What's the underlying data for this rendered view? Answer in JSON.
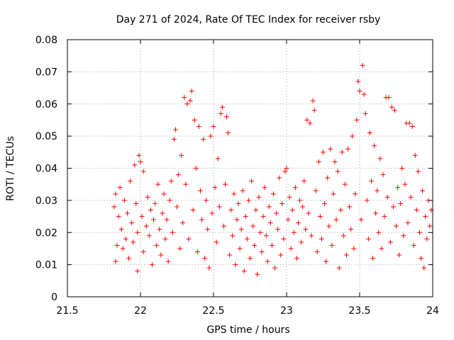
{
  "chart_data": {
    "type": "scatter",
    "title": "Day 271 of 2024, Rate Of TEC Index for receiver rsby",
    "xlabel": "GPS time / hours",
    "ylabel": "ROTI / TECUs",
    "xlim": [
      21.5,
      24
    ],
    "ylim": [
      0,
      0.08
    ],
    "xticks": [
      21.5,
      22,
      22.5,
      23,
      23.5,
      24
    ],
    "xtick_labels": [
      "21.5",
      "22",
      "22.5",
      "23",
      "23.5",
      "24"
    ],
    "yticks": [
      0,
      0.01,
      0.02,
      0.03,
      0.04,
      0.05,
      0.06,
      0.07,
      0.08
    ],
    "ytick_labels": [
      "0",
      "0.01",
      "0.02",
      "0.03",
      "0.04",
      "0.05",
      "0.06",
      "0.07",
      "0.08"
    ],
    "grid": true,
    "marker": "+",
    "color": "#ff0000",
    "series": [
      {
        "name": "ROTI",
        "points": [
          [
            21.82,
            0.028
          ],
          [
            21.83,
            0.032
          ],
          [
            21.83,
            0.011
          ],
          [
            21.84,
            0.016
          ],
          [
            21.85,
            0.025
          ],
          [
            21.86,
            0.034
          ],
          [
            21.87,
            0.021
          ],
          [
            21.88,
            0.015
          ],
          [
            21.89,
            0.03
          ],
          [
            21.9,
            0.018
          ],
          [
            21.91,
            0.026
          ],
          [
            21.92,
            0.012
          ],
          [
            21.93,
            0.036
          ],
          [
            21.94,
            0.023
          ],
          [
            21.95,
            0.017
          ],
          [
            21.96,
            0.041
          ],
          [
            21.97,
            0.029
          ],
          [
            21.98,
            0.008
          ],
          [
            21.98,
            0.02
          ],
          [
            21.99,
            0.044
          ],
          [
            22.0,
            0.042
          ],
          [
            22.01,
            0.025
          ],
          [
            22.02,
            0.039
          ],
          [
            22.02,
            0.014
          ],
          [
            22.04,
            0.022
          ],
          [
            22.05,
            0.031
          ],
          [
            22.06,
            0.019
          ],
          [
            22.07,
            0.027
          ],
          [
            22.08,
            0.01
          ],
          [
            22.09,
            0.024
          ],
          [
            22.1,
            0.029
          ],
          [
            22.11,
            0.016
          ],
          [
            22.12,
            0.035
          ],
          [
            22.13,
            0.021
          ],
          [
            22.14,
            0.013
          ],
          [
            22.15,
            0.026
          ],
          [
            22.16,
            0.032
          ],
          [
            22.17,
            0.018
          ],
          [
            22.18,
            0.024
          ],
          [
            22.19,
            0.011
          ],
          [
            22.2,
            0.03
          ],
          [
            22.21,
            0.036
          ],
          [
            22.22,
            0.02
          ],
          [
            22.23,
            0.049
          ],
          [
            22.24,
            0.052
          ],
          [
            22.25,
            0.028
          ],
          [
            22.26,
            0.038
          ],
          [
            22.27,
            0.015
          ],
          [
            22.28,
            0.044
          ],
          [
            22.29,
            0.023
          ],
          [
            22.3,
            0.062
          ],
          [
            22.31,
            0.035
          ],
          [
            22.32,
            0.06
          ],
          [
            22.33,
            0.018
          ],
          [
            22.34,
            0.061
          ],
          [
            22.35,
            0.064
          ],
          [
            22.36,
            0.027
          ],
          [
            22.37,
            0.055
          ],
          [
            22.38,
            0.04
          ],
          [
            22.39,
            0.014
          ],
          [
            22.4,
            0.053
          ],
          [
            22.41,
            0.033
          ],
          [
            22.42,
            0.024
          ],
          [
            22.43,
            0.049
          ],
          [
            22.44,
            0.012
          ],
          [
            22.45,
            0.03
          ],
          [
            22.46,
            0.021
          ],
          [
            22.47,
            0.009
          ],
          [
            22.48,
            0.05
          ],
          [
            22.49,
            0.026
          ],
          [
            22.5,
            0.053
          ],
          [
            22.51,
            0.034
          ],
          [
            22.52,
            0.017
          ],
          [
            22.53,
            0.043
          ],
          [
            22.54,
            0.028
          ],
          [
            22.55,
            0.057
          ],
          [
            22.56,
            0.059
          ],
          [
            22.57,
            0.022
          ],
          [
            22.58,
            0.035
          ],
          [
            22.59,
            0.056
          ],
          [
            22.6,
            0.051
          ],
          [
            22.61,
            0.013
          ],
          [
            22.62,
            0.027
          ],
          [
            22.63,
            0.019
          ],
          [
            22.64,
            0.032
          ],
          [
            22.65,
            0.01
          ],
          [
            22.66,
            0.024
          ],
          [
            22.67,
            0.029
          ],
          [
            22.68,
            0.015
          ],
          [
            22.69,
            0.021
          ],
          [
            22.7,
            0.033
          ],
          [
            22.71,
            0.008
          ],
          [
            22.72,
            0.025
          ],
          [
            22.73,
            0.018
          ],
          [
            22.74,
            0.03
          ],
          [
            22.75,
            0.012
          ],
          [
            22.76,
            0.036
          ],
          [
            22.77,
            0.022
          ],
          [
            22.78,
            0.016
          ],
          [
            22.79,
            0.027
          ],
          [
            22.8,
            0.007
          ],
          [
            22.81,
            0.031
          ],
          [
            22.82,
            0.02
          ],
          [
            22.83,
            0.014
          ],
          [
            22.84,
            0.025
          ],
          [
            22.85,
            0.034
          ],
          [
            22.86,
            0.019
          ],
          [
            22.87,
            0.011
          ],
          [
            22.88,
            0.028
          ],
          [
            22.89,
            0.023
          ],
          [
            22.9,
            0.016
          ],
          [
            22.91,
            0.032
          ],
          [
            22.92,
            0.009
          ],
          [
            22.93,
            0.026
          ],
          [
            22.94,
            0.021
          ],
          [
            22.95,
            0.037
          ],
          [
            22.96,
            0.013
          ],
          [
            22.97,
            0.029
          ],
          [
            22.98,
            0.018
          ],
          [
            22.99,
            0.039
          ],
          [
            23.0,
            0.04
          ],
          [
            23.01,
            0.024
          ],
          [
            23.02,
            0.031
          ],
          [
            23.03,
            0.015
          ],
          [
            23.04,
            0.027
          ],
          [
            23.05,
            0.02
          ],
          [
            23.06,
            0.034
          ],
          [
            23.07,
            0.012
          ],
          [
            23.08,
            0.023
          ],
          [
            23.09,
            0.03
          ],
          [
            23.1,
            0.017
          ],
          [
            23.11,
            0.028
          ],
          [
            23.12,
            0.036
          ],
          [
            23.13,
            0.021
          ],
          [
            23.14,
            0.055
          ],
          [
            23.15,
            0.026
          ],
          [
            23.16,
            0.054
          ],
          [
            23.17,
            0.019
          ],
          [
            23.18,
            0.061
          ],
          [
            23.19,
            0.058
          ],
          [
            23.2,
            0.033
          ],
          [
            23.21,
            0.014
          ],
          [
            23.22,
            0.042
          ],
          [
            23.23,
            0.025
          ],
          [
            23.24,
            0.018
          ],
          [
            23.25,
            0.045
          ],
          [
            23.26,
            0.029
          ],
          [
            23.27,
            0.011
          ],
          [
            23.28,
            0.037
          ],
          [
            23.29,
            0.022
          ],
          [
            23.3,
            0.046
          ],
          [
            23.31,
            0.016
          ],
          [
            23.32,
            0.032
          ],
          [
            23.33,
            0.042
          ],
          [
            23.34,
            0.024
          ],
          [
            23.35,
            0.039
          ],
          [
            23.36,
            0.009
          ],
          [
            23.37,
            0.027
          ],
          [
            23.38,
            0.045
          ],
          [
            23.39,
            0.019
          ],
          [
            23.4,
            0.035
          ],
          [
            23.41,
            0.013
          ],
          [
            23.42,
            0.046
          ],
          [
            23.43,
            0.028
          ],
          [
            23.44,
            0.021
          ],
          [
            23.45,
            0.05
          ],
          [
            23.46,
            0.015
          ],
          [
            23.47,
            0.032
          ],
          [
            23.48,
            0.055
          ],
          [
            23.49,
            0.067
          ],
          [
            23.5,
            0.064
          ],
          [
            23.51,
            0.024
          ],
          [
            23.52,
            0.072
          ],
          [
            23.53,
            0.063
          ],
          [
            23.54,
            0.057
          ],
          [
            23.55,
            0.03
          ],
          [
            23.56,
            0.018
          ],
          [
            23.57,
            0.051
          ],
          [
            23.58,
            0.036
          ],
          [
            23.59,
            0.012
          ],
          [
            23.6,
            0.047
          ],
          [
            23.61,
            0.026
          ],
          [
            23.62,
            0.033
          ],
          [
            23.63,
            0.02
          ],
          [
            23.64,
            0.043
          ],
          [
            23.65,
            0.015
          ],
          [
            23.66,
            0.038
          ],
          [
            23.67,
            0.025
          ],
          [
            23.68,
            0.062
          ],
          [
            23.69,
            0.031
          ],
          [
            23.7,
            0.062
          ],
          [
            23.71,
            0.017
          ],
          [
            23.72,
            0.059
          ],
          [
            23.73,
            0.028
          ],
          [
            23.74,
            0.058
          ],
          [
            23.75,
            0.022
          ],
          [
            23.76,
            0.034
          ],
          [
            23.77,
            0.013
          ],
          [
            23.78,
            0.029
          ],
          [
            23.79,
            0.04
          ],
          [
            23.8,
            0.019
          ],
          [
            23.81,
            0.035
          ],
          [
            23.82,
            0.054
          ],
          [
            23.83,
            0.023
          ],
          [
            23.84,
            0.054
          ],
          [
            23.85,
            0.031
          ],
          [
            23.86,
            0.053
          ],
          [
            23.87,
            0.016
          ],
          [
            23.88,
            0.044
          ],
          [
            23.89,
            0.027
          ],
          [
            23.9,
            0.039
          ],
          [
            23.91,
            0.02
          ],
          [
            23.92,
            0.012
          ],
          [
            23.93,
            0.033
          ],
          [
            23.94,
            0.009
          ],
          [
            23.95,
            0.025
          ],
          [
            23.96,
            0.018
          ],
          [
            23.97,
            0.03
          ],
          [
            23.98,
            0.022
          ],
          [
            23.99,
            0.027
          ]
        ]
      }
    ]
  }
}
